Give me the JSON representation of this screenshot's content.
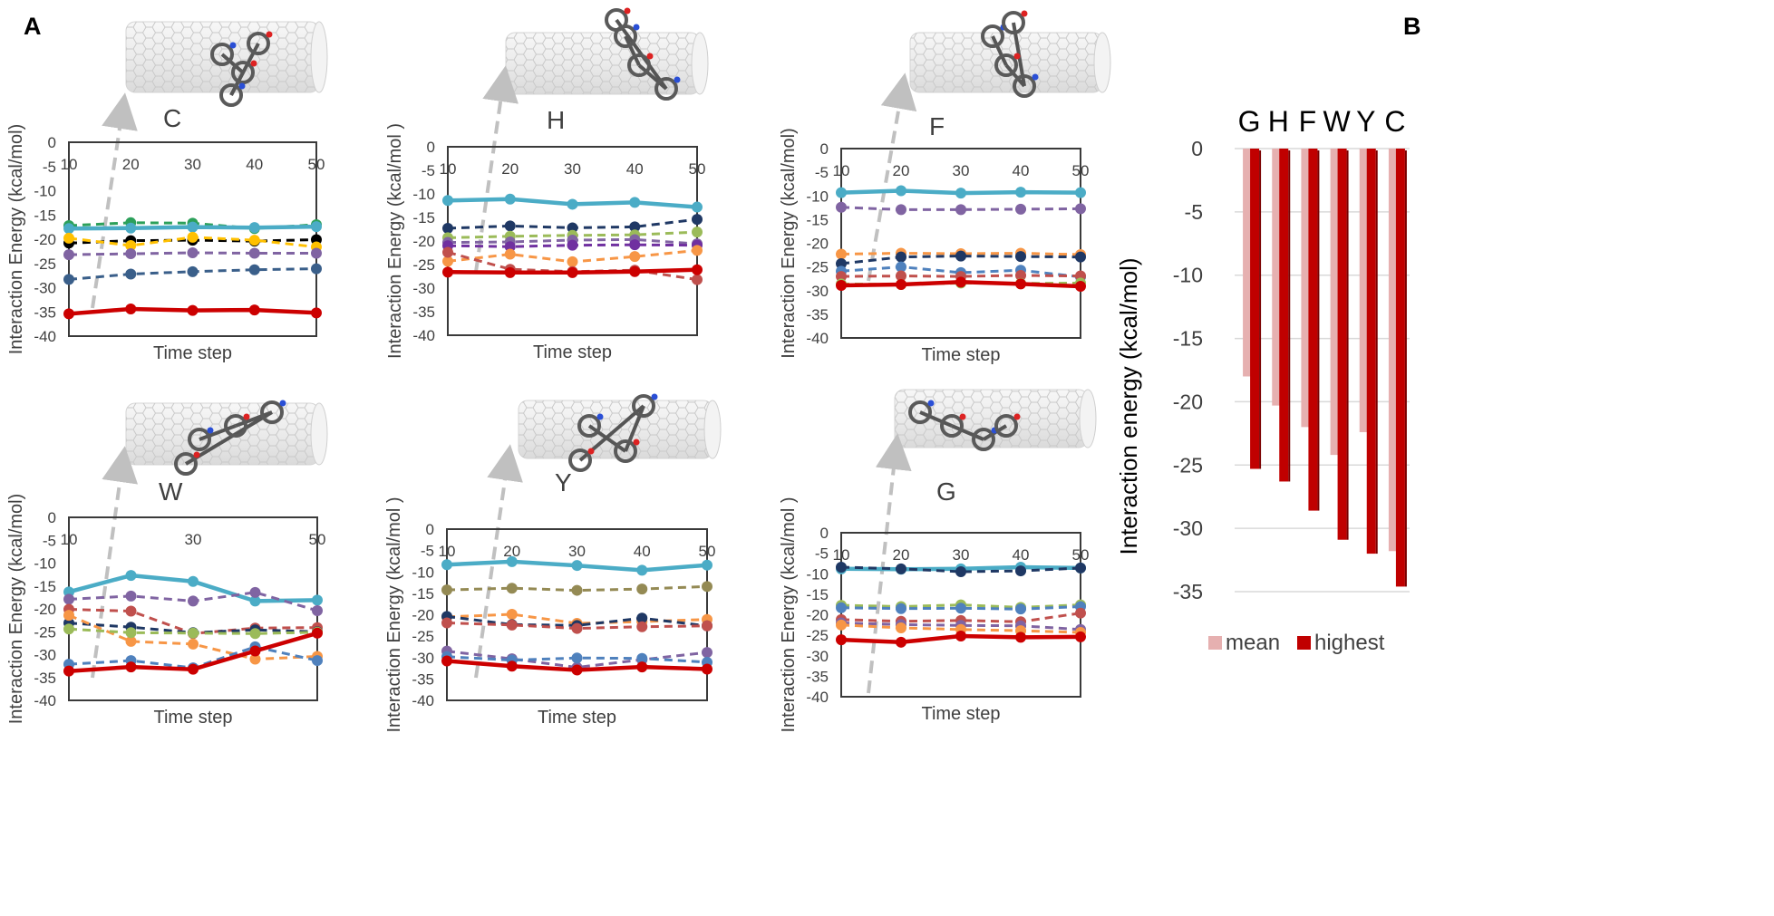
{
  "panel_labels": [
    "A",
    "B"
  ],
  "colors": {
    "cyan": "#4bacc6",
    "red": "#cc0000",
    "navy": "#1f3864",
    "steel": "#3a5f8a",
    "purple": "#8064a2",
    "orange": "#f79646",
    "salmon": "#c0504d",
    "green": "#9bbb59",
    "olive": "#948a54",
    "yellow": "#ffc000",
    "black": "#000000",
    "teal": "#2ca05a",
    "violet": "#7030a0",
    "blue": "#4f81bd",
    "mean": "#e6b0b0",
    "highest": "#c00000",
    "nanotube": "#e4e4e4",
    "arrow": "#c0c0c0"
  },
  "chart_data": [
    {
      "type": "line",
      "panel": "A",
      "title": "C",
      "ylabel": "Interaction Energy  (kcal/mol)",
      "xlabel": "Time step",
      "ylim": [
        -40,
        0
      ],
      "yticks": [
        "0",
        "-5",
        "-10",
        "-15",
        "-20",
        "-25",
        "-30",
        "-35",
        "-40"
      ],
      "xticks": [
        "10",
        "20",
        "30",
        "40",
        "50"
      ],
      "x": [
        10,
        20,
        30,
        40,
        50
      ],
      "series": [
        {
          "color": "teal",
          "dashed": true,
          "values": [
            -17.2,
            -16.6,
            -16.7,
            -17.8,
            -17.0
          ]
        },
        {
          "color": "cyan",
          "dashed": false,
          "values": [
            -17.8,
            -17.7,
            -17.5,
            -17.6,
            -17.4
          ]
        },
        {
          "color": "black",
          "dashed": true,
          "values": [
            -20.8,
            -20.3,
            -20.2,
            -20.4,
            -20.1
          ]
        },
        {
          "color": "yellow",
          "dashed": true,
          "values": [
            -19.8,
            -21.3,
            -19.6,
            -20.2,
            -21.6
          ]
        },
        {
          "color": "purple",
          "dashed": true,
          "values": [
            -23.2,
            -23.0,
            -22.8,
            -22.9,
            -22.9
          ]
        },
        {
          "color": "steel",
          "dashed": true,
          "values": [
            -28.3,
            -27.2,
            -26.7,
            -26.3,
            -26.1
          ]
        },
        {
          "color": "red",
          "dashed": false,
          "values": [
            -35.4,
            -34.4,
            -34.7,
            -34.6,
            -35.2
          ]
        }
      ]
    },
    {
      "type": "line",
      "panel": "A",
      "title": "H",
      "ylabel": "Interaction Energy  (kcal/mol )",
      "xlabel": "Time step",
      "ylim": [
        -40,
        0
      ],
      "yticks": [
        "0",
        "-5",
        "-10",
        "-15",
        "-20",
        "-25",
        "-30",
        "-35",
        "-40"
      ],
      "xticks": [
        "10",
        "20",
        "30",
        "40",
        "50"
      ],
      "x": [
        10,
        20,
        30,
        40,
        50
      ],
      "series": [
        {
          "color": "cyan",
          "dashed": false,
          "values": [
            -11.4,
            -11.1,
            -12.2,
            -11.8,
            -12.8
          ]
        },
        {
          "color": "navy",
          "dashed": true,
          "values": [
            -17.3,
            -16.8,
            -17.2,
            -17.0,
            -15.4
          ]
        },
        {
          "color": "green",
          "dashed": true,
          "values": [
            -19.3,
            -19.0,
            -18.8,
            -18.7,
            -18.1
          ]
        },
        {
          "color": "purple",
          "dashed": true,
          "values": [
            -20.3,
            -20.2,
            -19.8,
            -19.7,
            -20.6
          ]
        },
        {
          "color": "violet",
          "dashed": true,
          "values": [
            -21.0,
            -21.2,
            -20.9,
            -20.8,
            -20.9
          ]
        },
        {
          "color": "orange",
          "dashed": true,
          "values": [
            -24.3,
            -22.8,
            -24.4,
            -23.3,
            -22.0
          ]
        },
        {
          "color": "salmon",
          "dashed": true,
          "values": [
            -22.4,
            -26.0,
            -26.5,
            -26.2,
            -28.2
          ]
        },
        {
          "color": "red",
          "dashed": false,
          "values": [
            -26.6,
            -26.7,
            -26.7,
            -26.5,
            -26.1
          ]
        }
      ]
    },
    {
      "type": "line",
      "panel": "A",
      "title": "F",
      "ylabel": "Interaction Energy  (kcal/mol)",
      "xlabel": "Time step",
      "ylim": [
        -40,
        0
      ],
      "yticks": [
        "0",
        "-5",
        "-10",
        "-15",
        "-20",
        "-25",
        "-30",
        "-35",
        "-40"
      ],
      "xticks": [
        "10",
        "20",
        "30",
        "40",
        "50"
      ],
      "x": [
        10,
        20,
        30,
        40,
        50
      ],
      "series": [
        {
          "color": "cyan",
          "dashed": false,
          "values": [
            -9.3,
            -8.9,
            -9.4,
            -9.2,
            -9.3
          ]
        },
        {
          "color": "purple",
          "dashed": true,
          "values": [
            -12.4,
            -12.9,
            -12.9,
            -12.8,
            -12.7
          ]
        },
        {
          "color": "orange",
          "dashed": true,
          "values": [
            -22.3,
            -22.1,
            -22.2,
            -22.1,
            -22.4
          ]
        },
        {
          "color": "navy",
          "dashed": true,
          "values": [
            -24.3,
            -22.9,
            -22.7,
            -22.8,
            -22.9
          ]
        },
        {
          "color": "blue",
          "dashed": true,
          "values": [
            -25.9,
            -25.0,
            -26.2,
            -25.7,
            -27.1
          ]
        },
        {
          "color": "salmon",
          "dashed": true,
          "values": [
            -27.0,
            -26.9,
            -27.0,
            -26.8,
            -26.9
          ]
        },
        {
          "color": "green",
          "dashed": true,
          "values": [
            -28.6,
            -28.7,
            -28.4,
            -28.5,
            -28.4
          ]
        },
        {
          "color": "red",
          "dashed": false,
          "values": [
            -28.9,
            -28.7,
            -28.2,
            -28.6,
            -29.1
          ]
        }
      ]
    },
    {
      "type": "line",
      "panel": "A",
      "title": "W",
      "ylabel": "Interaction Energy  (kcal/mol)",
      "xlabel": "Time step",
      "ylim": [
        -40,
        0
      ],
      "yticks": [
        "0",
        "-5",
        "-10",
        "-15",
        "-20",
        "-25",
        "-30",
        "-35",
        "-40"
      ],
      "xticks": [
        "10",
        "30",
        "50"
      ],
      "x": [
        10,
        20,
        30,
        40,
        50
      ],
      "series": [
        {
          "color": "cyan",
          "dashed": false,
          "values": [
            -16.3,
            -12.7,
            -14.0,
            -18.3,
            -18.1
          ]
        },
        {
          "color": "purple",
          "dashed": true,
          "values": [
            -17.9,
            -17.2,
            -18.3,
            -16.4,
            -20.4
          ]
        },
        {
          "color": "salmon",
          "dashed": true,
          "values": [
            -20.1,
            -20.5,
            -25.4,
            -24.2,
            -24.1
          ]
        },
        {
          "color": "navy",
          "dashed": true,
          "values": [
            -23.1,
            -24.0,
            -25.2,
            -24.6,
            -25.0
          ]
        },
        {
          "color": "orange",
          "dashed": true,
          "values": [
            -21.4,
            -27.1,
            -27.7,
            -31.0,
            -30.4
          ]
        },
        {
          "color": "green",
          "dashed": true,
          "values": [
            -24.4,
            -25.2,
            -25.3,
            -25.4,
            -25.1
          ]
        },
        {
          "color": "blue",
          "dashed": true,
          "values": [
            -32.1,
            -31.3,
            -32.9,
            -28.3,
            -31.3
          ]
        },
        {
          "color": "red",
          "dashed": false,
          "values": [
            -33.6,
            -32.7,
            -33.2,
            -29.2,
            -25.3
          ]
        }
      ]
    },
    {
      "type": "line",
      "panel": "A",
      "title": "Y",
      "ylabel": "Interaction Energy  (kcal/mol )",
      "xlabel": "Time step",
      "ylim": [
        -40,
        0
      ],
      "yticks": [
        "0",
        "-5",
        "-10",
        "-15",
        "-20",
        "-25",
        "-30",
        "-35",
        "-40"
      ],
      "xticks": [
        "10",
        "20",
        "30",
        "40",
        "50"
      ],
      "x": [
        10,
        20,
        30,
        40,
        50
      ],
      "series": [
        {
          "color": "cyan",
          "dashed": false,
          "values": [
            -8.3,
            -7.6,
            -8.5,
            -9.6,
            -8.4
          ]
        },
        {
          "color": "olive",
          "dashed": true,
          "values": [
            -14.2,
            -13.8,
            -14.3,
            -14.0,
            -13.4
          ]
        },
        {
          "color": "orange",
          "dashed": true,
          "values": [
            -20.5,
            -19.9,
            -22.0,
            -21.6,
            -21.1
          ]
        },
        {
          "color": "navy",
          "dashed": true,
          "values": [
            -20.4,
            -22.3,
            -22.5,
            -20.8,
            -22.6
          ]
        },
        {
          "color": "salmon",
          "dashed": true,
          "values": [
            -21.9,
            -22.4,
            -23.2,
            -22.8,
            -22.6
          ]
        },
        {
          "color": "purple",
          "dashed": true,
          "values": [
            -28.5,
            -30.3,
            -32.3,
            -30.5,
            -28.8
          ]
        },
        {
          "color": "blue",
          "dashed": true,
          "values": [
            -29.8,
            -30.6,
            -30.1,
            -30.2,
            -31.1
          ]
        },
        {
          "color": "red",
          "dashed": false,
          "values": [
            -30.8,
            -32.0,
            -32.9,
            -32.2,
            -32.7
          ]
        }
      ]
    },
    {
      "type": "line",
      "panel": "A",
      "title": "G",
      "ylabel": "Interaction Energy  (kcal/mol )",
      "xlabel": "Time step",
      "ylim": [
        -40,
        0
      ],
      "yticks": [
        "0",
        "-5",
        "-10",
        "-15",
        "-20",
        "-25",
        "-30",
        "-35",
        "-40"
      ],
      "xticks": [
        "10",
        "20",
        "30",
        "40",
        "50"
      ],
      "x": [
        10,
        20,
        30,
        40,
        50
      ],
      "series": [
        {
          "color": "cyan",
          "dashed": false,
          "values": [
            -8.8,
            -8.9,
            -8.8,
            -8.4,
            -8.6
          ]
        },
        {
          "color": "navy",
          "dashed": true,
          "values": [
            -8.4,
            -8.8,
            -9.5,
            -9.3,
            -8.6
          ]
        },
        {
          "color": "green",
          "dashed": true,
          "values": [
            -17.7,
            -18.0,
            -17.6,
            -18.2,
            -17.6
          ]
        },
        {
          "color": "blue",
          "dashed": true,
          "values": [
            -18.3,
            -18.5,
            -18.4,
            -18.6,
            -18.0
          ]
        },
        {
          "color": "salmon",
          "dashed": true,
          "values": [
            -21.2,
            -21.6,
            -21.4,
            -21.7,
            -19.6
          ]
        },
        {
          "color": "purple",
          "dashed": true,
          "values": [
            -22.0,
            -22.4,
            -22.6,
            -22.7,
            -23.6
          ]
        },
        {
          "color": "orange",
          "dashed": true,
          "values": [
            -22.5,
            -23.2,
            -23.6,
            -23.9,
            -24.3
          ]
        },
        {
          "color": "red",
          "dashed": false,
          "values": [
            -26.1,
            -26.7,
            -25.2,
            -25.5,
            -25.4
          ]
        }
      ]
    },
    {
      "type": "bar",
      "panel": "B",
      "ylabel": "Interaction energy (kcal/mol)",
      "categories": [
        "G",
        "H",
        "F",
        "W",
        "Y",
        "C"
      ],
      "ylim": [
        -35,
        0
      ],
      "yticks": [
        "0",
        "-5",
        "-10",
        "-15",
        "-20",
        "-25",
        "-30",
        "-35"
      ],
      "series": [
        {
          "name": "mean",
          "color": "mean",
          "values": [
            -18.0,
            -20.3,
            -22.0,
            -24.2,
            -22.4,
            -31.8
          ]
        },
        {
          "name": "highest",
          "color": "highest",
          "values": [
            -25.3,
            -26.3,
            -28.6,
            -30.9,
            -32.0,
            -34.6
          ]
        }
      ],
      "legend": [
        "mean",
        "highest"
      ]
    }
  ]
}
